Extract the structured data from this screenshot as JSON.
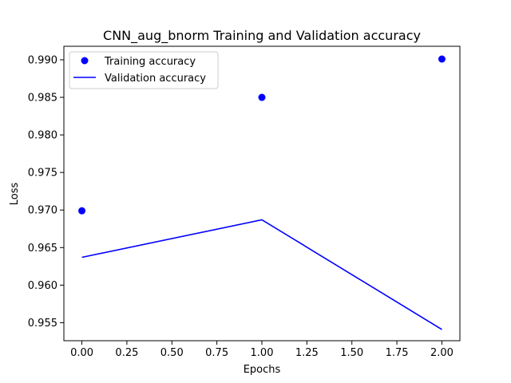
{
  "chart_data": {
    "type": "line",
    "title": "CNN_aug_bnorm Training and Validation accuracy",
    "xlabel": "Epochs",
    "ylabel": "Loss",
    "xlim": [
      -0.1,
      2.1
    ],
    "ylim": [
      0.9526,
      0.9918
    ],
    "x_ticks": [
      0.0,
      0.25,
      0.5,
      0.75,
      1.0,
      1.25,
      1.5,
      1.75,
      2.0
    ],
    "x_tick_labels": [
      "0.00",
      "0.25",
      "0.50",
      "0.75",
      "1.00",
      "1.25",
      "1.50",
      "1.75",
      "2.00"
    ],
    "y_ticks": [
      0.955,
      0.96,
      0.965,
      0.97,
      0.975,
      0.98,
      0.985,
      0.99
    ],
    "y_tick_labels": [
      "0.955",
      "0.960",
      "0.965",
      "0.970",
      "0.975",
      "0.980",
      "0.985",
      "0.990"
    ],
    "grid": false,
    "legend_position": "upper-left",
    "series": [
      {
        "name": "Training accuracy",
        "style": "points",
        "color": "#0000ff",
        "x": [
          0,
          1,
          2
        ],
        "y": [
          0.9699,
          0.985,
          0.9901
        ]
      },
      {
        "name": "Validation accuracy",
        "style": "line",
        "color": "#0000ff",
        "x": [
          0,
          1,
          2
        ],
        "y": [
          0.9637,
          0.9687,
          0.9541
        ]
      }
    ]
  }
}
